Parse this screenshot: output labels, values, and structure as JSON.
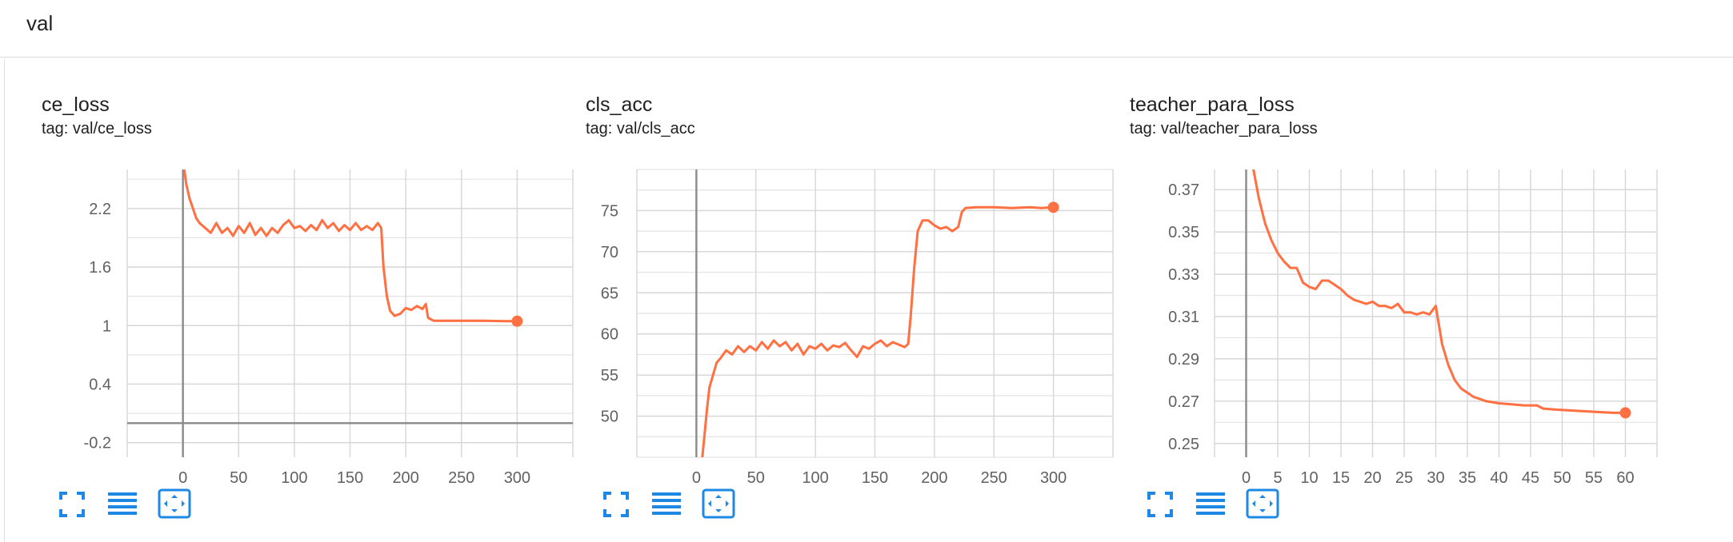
{
  "group": {
    "title": "val"
  },
  "colors": {
    "accent": "#ff7043",
    "grid": "#d6d6d6",
    "axis": "#8a8a8a",
    "icon": "#1e88e5"
  },
  "toolbar_icons": [
    "fullscreen-icon",
    "toggle-log-scale-icon",
    "fit-domain-icon"
  ],
  "cards": [
    {
      "title": "ce_loss",
      "tag": "tag: val/ce_loss"
    },
    {
      "title": "cls_acc",
      "tag": "tag: val/cls_acc"
    },
    {
      "title": "teacher_para_loss",
      "tag": "tag: val/teacher_para_loss"
    }
  ],
  "chart_data": [
    {
      "type": "line",
      "title": "ce_loss",
      "xlabel": "",
      "ylabel": "",
      "xlim": [
        -50,
        350
      ],
      "ylim": [
        -0.35,
        2.6
      ],
      "xticks": [
        0,
        50,
        100,
        150,
        200,
        250,
        300
      ],
      "yticks": [
        -0.2,
        0.4,
        1,
        1.6,
        2.2
      ],
      "ytick_labels": [
        "-0.2",
        "0.4",
        "1",
        "1.6",
        "2.2"
      ],
      "grid": true,
      "series": [
        {
          "values": [
            [
              0,
              2.7
            ],
            [
              3,
              2.45
            ],
            [
              6,
              2.3
            ],
            [
              9,
              2.2
            ],
            [
              12,
              2.1
            ],
            [
              15,
              2.05
            ],
            [
              20,
              2.0
            ],
            [
              25,
              1.95
            ],
            [
              30,
              2.05
            ],
            [
              35,
              1.95
            ],
            [
              40,
              2.0
            ],
            [
              45,
              1.92
            ],
            [
              50,
              2.02
            ],
            [
              55,
              1.95
            ],
            [
              60,
              2.05
            ],
            [
              65,
              1.93
            ],
            [
              70,
              2.0
            ],
            [
              75,
              1.92
            ],
            [
              80,
              2.0
            ],
            [
              85,
              1.95
            ],
            [
              90,
              2.03
            ],
            [
              95,
              2.08
            ],
            [
              100,
              2.0
            ],
            [
              105,
              2.02
            ],
            [
              110,
              1.97
            ],
            [
              115,
              2.03
            ],
            [
              120,
              1.98
            ],
            [
              125,
              2.08
            ],
            [
              130,
              2.0
            ],
            [
              135,
              2.05
            ],
            [
              140,
              1.97
            ],
            [
              145,
              2.03
            ],
            [
              150,
              1.98
            ],
            [
              155,
              2.05
            ],
            [
              160,
              1.98
            ],
            [
              165,
              2.02
            ],
            [
              170,
              1.98
            ],
            [
              175,
              2.05
            ],
            [
              178,
              2.0
            ],
            [
              180,
              1.6
            ],
            [
              183,
              1.3
            ],
            [
              186,
              1.15
            ],
            [
              190,
              1.1
            ],
            [
              195,
              1.12
            ],
            [
              200,
              1.18
            ],
            [
              205,
              1.16
            ],
            [
              210,
              1.2
            ],
            [
              215,
              1.17
            ],
            [
              218,
              1.22
            ],
            [
              220,
              1.08
            ],
            [
              225,
              1.05
            ],
            [
              235,
              1.05
            ],
            [
              250,
              1.05
            ],
            [
              270,
              1.05
            ],
            [
              290,
              1.045
            ],
            [
              300,
              1.045
            ]
          ]
        }
      ]
    },
    {
      "type": "line",
      "title": "cls_acc",
      "xlabel": "",
      "ylabel": "",
      "xlim": [
        -50,
        350
      ],
      "ylim": [
        45,
        80
      ],
      "xticks": [
        0,
        50,
        100,
        150,
        200,
        250,
        300
      ],
      "yticks": [
        50,
        55,
        60,
        65,
        70,
        75
      ],
      "ytick_labels": [
        "50",
        "55",
        "60",
        "65",
        "70",
        "75"
      ],
      "grid": true,
      "series": [
        {
          "values": [
            [
              5,
              45
            ],
            [
              7,
              48
            ],
            [
              9,
              51
            ],
            [
              11,
              53.5
            ],
            [
              14,
              55
            ],
            [
              17,
              56.5
            ],
            [
              20,
              57
            ],
            [
              25,
              58
            ],
            [
              30,
              57.5
            ],
            [
              35,
              58.5
            ],
            [
              40,
              57.8
            ],
            [
              45,
              58.5
            ],
            [
              50,
              58.0
            ],
            [
              55,
              59
            ],
            [
              60,
              58.2
            ],
            [
              65,
              59.2
            ],
            [
              70,
              58.5
            ],
            [
              75,
              59.0
            ],
            [
              80,
              58.0
            ],
            [
              85,
              58.8
            ],
            [
              90,
              57.5
            ],
            [
              95,
              58.5
            ],
            [
              100,
              58.2
            ],
            [
              105,
              58.8
            ],
            [
              110,
              58.0
            ],
            [
              115,
              58.6
            ],
            [
              120,
              58.4
            ],
            [
              125,
              58.9
            ],
            [
              130,
              58.0
            ],
            [
              135,
              57.2
            ],
            [
              140,
              58.5
            ],
            [
              145,
              58.2
            ],
            [
              150,
              58.8
            ],
            [
              155,
              59.2
            ],
            [
              160,
              58.5
            ],
            [
              165,
              59.0
            ],
            [
              170,
              58.7
            ],
            [
              175,
              58.4
            ],
            [
              178,
              58.8
            ],
            [
              180,
              62
            ],
            [
              183,
              68
            ],
            [
              186,
              72.5
            ],
            [
              190,
              73.8
            ],
            [
              195,
              73.8
            ],
            [
              200,
              73.2
            ],
            [
              205,
              72.8
            ],
            [
              210,
              73.0
            ],
            [
              215,
              72.5
            ],
            [
              220,
              73.0
            ],
            [
              223,
              74.8
            ],
            [
              226,
              75.3
            ],
            [
              235,
              75.4
            ],
            [
              250,
              75.4
            ],
            [
              265,
              75.3
            ],
            [
              280,
              75.4
            ],
            [
              290,
              75.3
            ],
            [
              300,
              75.4
            ]
          ]
        }
      ]
    },
    {
      "type": "line",
      "title": "teacher_para_loss",
      "xlabel": "",
      "ylabel": "",
      "xlim": [
        -5,
        65
      ],
      "ylim": [
        0.2435,
        0.3795
      ],
      "xticks": [
        0,
        5,
        10,
        15,
        20,
        25,
        30,
        35,
        40,
        45,
        50,
        55,
        60
      ],
      "yticks": [
        0.25,
        0.27,
        0.29,
        0.31,
        0.33,
        0.35,
        0.37
      ],
      "ytick_labels": [
        "0.25",
        "0.27",
        "0.29",
        "0.31",
        "0.33",
        "0.35",
        "0.37"
      ],
      "grid": true,
      "series": [
        {
          "values": [
            [
              1,
              0.382
            ],
            [
              2,
              0.366
            ],
            [
              3,
              0.354
            ],
            [
              4,
              0.346
            ],
            [
              5,
              0.34
            ],
            [
              6,
              0.336
            ],
            [
              7,
              0.333
            ],
            [
              8,
              0.333
            ],
            [
              9,
              0.326
            ],
            [
              10,
              0.324
            ],
            [
              11,
              0.323
            ],
            [
              12,
              0.327
            ],
            [
              13,
              0.327
            ],
            [
              14,
              0.325
            ],
            [
              15,
              0.323
            ],
            [
              16,
              0.32
            ],
            [
              17,
              0.318
            ],
            [
              18,
              0.317
            ],
            [
              19,
              0.316
            ],
            [
              20,
              0.317
            ],
            [
              21,
              0.315
            ],
            [
              22,
              0.315
            ],
            [
              23,
              0.314
            ],
            [
              24,
              0.316
            ],
            [
              25,
              0.312
            ],
            [
              26,
              0.312
            ],
            [
              27,
              0.311
            ],
            [
              28,
              0.312
            ],
            [
              29,
              0.311
            ],
            [
              30,
              0.315
            ],
            [
              31,
              0.297
            ],
            [
              32,
              0.287
            ],
            [
              33,
              0.28
            ],
            [
              34,
              0.276
            ],
            [
              35,
              0.274
            ],
            [
              36,
              0.272
            ],
            [
              37,
              0.271
            ],
            [
              38,
              0.27
            ],
            [
              40,
              0.269
            ],
            [
              42,
              0.2685
            ],
            [
              44,
              0.268
            ],
            [
              46,
              0.268
            ],
            [
              47,
              0.2665
            ],
            [
              49,
              0.266
            ],
            [
              52,
              0.2655
            ],
            [
              55,
              0.265
            ],
            [
              58,
              0.2645
            ],
            [
              60,
              0.2645
            ]
          ]
        }
      ]
    }
  ]
}
